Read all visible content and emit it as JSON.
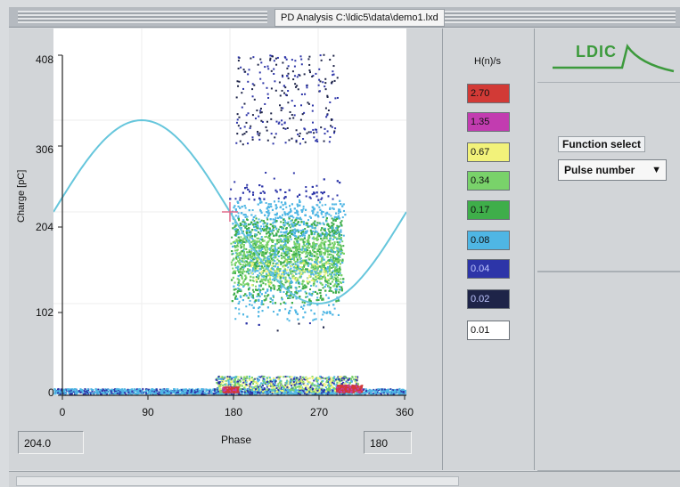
{
  "window": {
    "title": "PD Analysis   C:\\ldic5\\data\\demo1.lxd"
  },
  "plot": {
    "y_axis_label": "Charge [pC]",
    "x_axis_label": "Phase",
    "y_ticks": [
      "408",
      "306",
      "204",
      "102",
      "0"
    ],
    "x_ticks": [
      "0",
      "90",
      "180",
      "270",
      "360"
    ],
    "y_range": [
      0,
      408
    ],
    "x_range": [
      0,
      360
    ],
    "cursor_charge_readout": "204.0",
    "cursor_phase_readout": "180",
    "cursor_point": {
      "phase": 180,
      "charge": 204
    },
    "reference_sine": {
      "amplitude_pC": 102,
      "offset_pC": 204,
      "color": "#66c6dc"
    }
  },
  "legend": {
    "title": "H(n)/s",
    "items": [
      {
        "label": "2.70",
        "color": "#d23a36"
      },
      {
        "label": "1.35",
        "color": "#c23cb0"
      },
      {
        "label": "0.67",
        "color": "#f2f27a"
      },
      {
        "label": "0.34",
        "color": "#79d26a"
      },
      {
        "label": "0.17",
        "color": "#3fae4a"
      },
      {
        "label": "0.08",
        "color": "#4fb6e4"
      },
      {
        "label": "0.04",
        "color": "#2d35a8"
      },
      {
        "label": "0.02",
        "color": "#1e2448"
      },
      {
        "label": "0.01",
        "color": "#ffffff"
      }
    ]
  },
  "right_panel": {
    "logo_text": "LDIC",
    "function_select_label": "Function select",
    "function_select_value": "Pulse number"
  },
  "colors": {
    "logo_green": "#3c9a3c",
    "panel_bg": "#d2d5d8"
  }
}
